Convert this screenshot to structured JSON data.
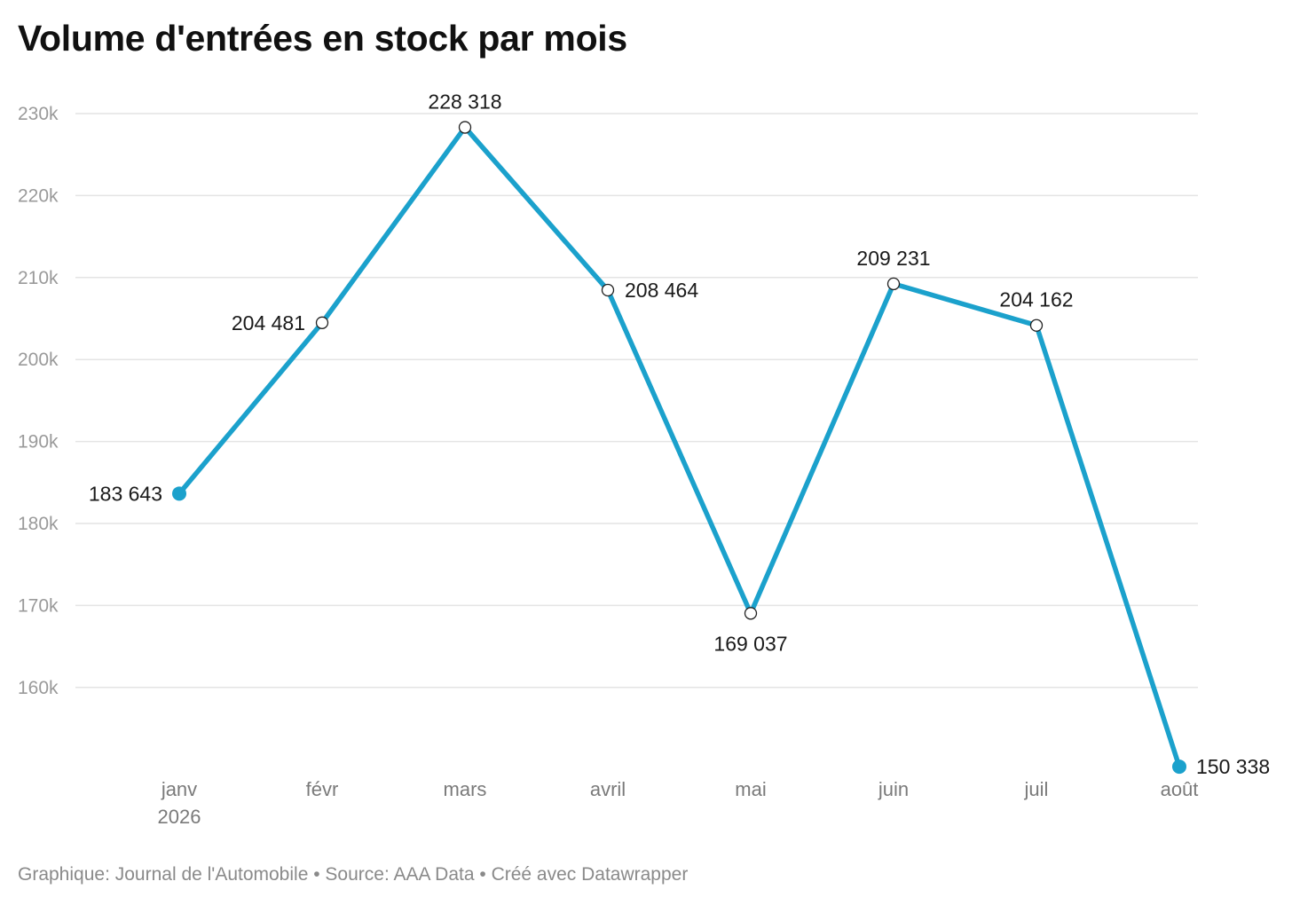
{
  "title": "Volume d'entrées en stock par mois",
  "footer": {
    "graphique": "Graphique: Journal de l'Automobile",
    "source": "Source: AAA Data",
    "created": "Créé avec Datawrapper"
  },
  "colors": {
    "line": "#1ba1cc",
    "grid": "#e4e4e4",
    "axis_text": "#9a9a9a",
    "label_text": "#1a1a1a"
  },
  "chart_data": {
    "type": "line",
    "title": "Volume d'entrées en stock par mois",
    "xlabel": "",
    "ylabel": "",
    "categories": [
      "janv 2026",
      "févr",
      "mars",
      "avril",
      "mai",
      "juin",
      "juil",
      "août"
    ],
    "category_lines": [
      [
        "janv",
        "2026"
      ],
      [
        "févr"
      ],
      [
        "mars"
      ],
      [
        "avril"
      ],
      [
        "mai"
      ],
      [
        "juin"
      ],
      [
        "juil"
      ],
      [
        "août"
      ]
    ],
    "series": [
      {
        "values": [
          183643,
          204481,
          228318,
          208464,
          169037,
          209231,
          204162,
          150338
        ],
        "labels": [
          "183 643",
          "204 481",
          "228 318",
          "208 464",
          "169 037",
          "209 231",
          "204 162",
          "150 338"
        ]
      }
    ],
    "y_ticks": [
      160000,
      170000,
      180000,
      190000,
      200000,
      210000,
      220000,
      230000
    ],
    "y_tick_labels": [
      "160k",
      "170k",
      "180k",
      "190k",
      "200k",
      "210k",
      "220k",
      "230k"
    ],
    "ylim": [
      150338,
      230000
    ],
    "grid": true,
    "legend": "none"
  }
}
